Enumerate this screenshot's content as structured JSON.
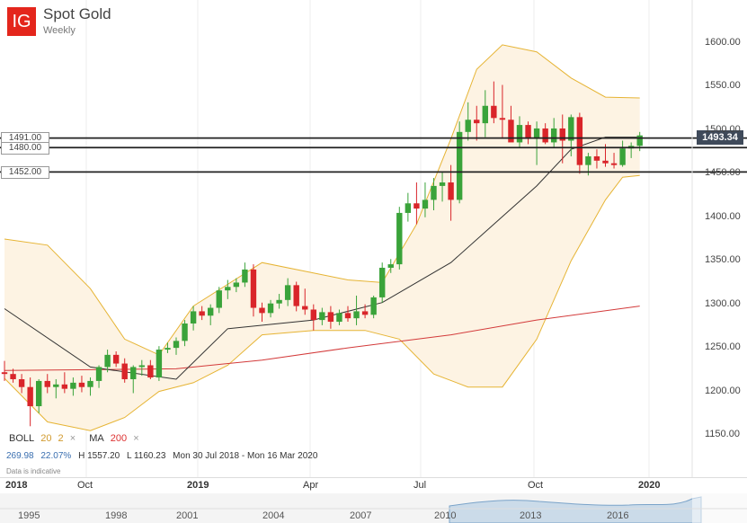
{
  "header": {
    "logo": "IG",
    "title": "Spot Gold",
    "subtitle": "Weekly"
  },
  "price_badge": "1493.34",
  "hline_labels": [
    "1491.00",
    "1480.00",
    "1452.00"
  ],
  "indicators": {
    "boll": {
      "name": "BOLL",
      "period": "20",
      "dev": "2",
      "remove": "×"
    },
    "ma": {
      "name": "MA",
      "period": "200",
      "remove": "×"
    }
  },
  "stats": {
    "change": "269.98",
    "change_pct": "22.07%",
    "high": "H 1557.20",
    "low": "L 1160.23",
    "range": "Mon 30 Jul 2018 - Mon 16 Mar 2020"
  },
  "note": "Data is indicative",
  "x_labels": [
    {
      "text": "2018",
      "major": true
    },
    {
      "text": "Oct",
      "major": false
    },
    {
      "text": "2019",
      "major": true
    },
    {
      "text": "Apr",
      "major": false
    },
    {
      "text": "Jul",
      "major": false
    },
    {
      "text": "Oct",
      "major": false
    },
    {
      "text": "2020",
      "major": true
    }
  ],
  "navigator_labels": [
    "1995",
    "1998",
    "2001",
    "2004",
    "2007",
    "2010",
    "2013",
    "2016"
  ],
  "colors": {
    "up": "#3aa33a",
    "down": "#d9252a",
    "boll_band": "#e6b434",
    "boll_fill": "#fdf3e3",
    "ma20": "#333333",
    "ma200": "#d33a3a",
    "logo": "#e4261c"
  },
  "chart_data": {
    "type": "candlestick",
    "title": "Spot Gold",
    "subtitle": "Weekly",
    "ylim": [
      1140,
      1610
    ],
    "y_ticks": [
      1150,
      1200,
      1250,
      1300,
      1350,
      1400,
      1450,
      1500,
      1550,
      1600
    ],
    "horizontal_lines": [
      1491,
      1480,
      1452
    ],
    "last_price": 1493.34,
    "candles": [
      [
        1222,
        1235,
        1212,
        1220
      ],
      [
        1220,
        1226,
        1210,
        1214
      ],
      [
        1214,
        1220,
        1198,
        1205
      ],
      [
        1205,
        1216,
        1160,
        1183
      ],
      [
        1183,
        1214,
        1175,
        1212
      ],
      [
        1212,
        1220,
        1198,
        1205
      ],
      [
        1205,
        1214,
        1192,
        1208
      ],
      [
        1208,
        1222,
        1198,
        1203
      ],
      [
        1203,
        1216,
        1195,
        1210
      ],
      [
        1210,
        1218,
        1199,
        1205
      ],
      [
        1205,
        1216,
        1195,
        1212
      ],
      [
        1212,
        1230,
        1204,
        1228
      ],
      [
        1228,
        1248,
        1222,
        1242
      ],
      [
        1242,
        1246,
        1228,
        1232
      ],
      [
        1232,
        1238,
        1210,
        1214
      ],
      [
        1214,
        1230,
        1198,
        1228
      ],
      [
        1228,
        1236,
        1218,
        1230
      ],
      [
        1230,
        1236,
        1214,
        1216
      ],
      [
        1216,
        1252,
        1212,
        1248
      ],
      [
        1248,
        1256,
        1244,
        1250
      ],
      [
        1250,
        1262,
        1242,
        1258
      ],
      [
        1258,
        1282,
        1252,
        1278
      ],
      [
        1278,
        1298,
        1270,
        1292
      ],
      [
        1292,
        1298,
        1282,
        1287
      ],
      [
        1287,
        1300,
        1276,
        1296
      ],
      [
        1296,
        1320,
        1290,
        1316
      ],
      [
        1316,
        1328,
        1306,
        1320
      ],
      [
        1320,
        1330,
        1314,
        1325
      ],
      [
        1325,
        1348,
        1320,
        1340
      ],
      [
        1340,
        1346,
        1286,
        1296
      ],
      [
        1296,
        1302,
        1280,
        1290
      ],
      [
        1290,
        1305,
        1285,
        1301
      ],
      [
        1301,
        1312,
        1295,
        1305
      ],
      [
        1305,
        1330,
        1298,
        1322
      ],
      [
        1322,
        1326,
        1292,
        1298
      ],
      [
        1298,
        1318,
        1288,
        1294
      ],
      [
        1294,
        1300,
        1270,
        1282
      ],
      [
        1282,
        1296,
        1276,
        1291
      ],
      [
        1291,
        1298,
        1272,
        1280
      ],
      [
        1280,
        1294,
        1276,
        1290
      ],
      [
        1290,
        1298,
        1280,
        1284
      ],
      [
        1284,
        1310,
        1276,
        1292
      ],
      [
        1292,
        1300,
        1284,
        1288
      ],
      [
        1288,
        1310,
        1284,
        1308
      ],
      [
        1308,
        1348,
        1302,
        1342
      ],
      [
        1342,
        1352,
        1336,
        1346
      ],
      [
        1346,
        1412,
        1340,
        1405
      ],
      [
        1405,
        1428,
        1395,
        1416
      ],
      [
        1416,
        1440,
        1392,
        1410
      ],
      [
        1410,
        1440,
        1400,
        1420
      ],
      [
        1420,
        1445,
        1408,
        1436
      ],
      [
        1436,
        1452,
        1418,
        1440
      ],
      [
        1440,
        1460,
        1396,
        1420
      ],
      [
        1420,
        1510,
        1416,
        1498
      ],
      [
        1498,
        1532,
        1488,
        1512
      ],
      [
        1512,
        1528,
        1488,
        1508
      ],
      [
        1508,
        1546,
        1492,
        1528
      ],
      [
        1528,
        1556,
        1508,
        1514
      ],
      [
        1514,
        1552,
        1490,
        1512
      ],
      [
        1512,
        1528,
        1488,
        1486
      ],
      [
        1486,
        1516,
        1480,
        1506
      ],
      [
        1506,
        1510,
        1484,
        1490
      ],
      [
        1490,
        1510,
        1460,
        1502
      ],
      [
        1502,
        1508,
        1484,
        1486
      ],
      [
        1486,
        1514,
        1480,
        1502
      ],
      [
        1502,
        1518,
        1462,
        1488
      ],
      [
        1488,
        1518,
        1470,
        1515
      ],
      [
        1515,
        1520,
        1450,
        1460
      ],
      [
        1460,
        1474,
        1448,
        1470
      ],
      [
        1470,
        1478,
        1456,
        1465
      ],
      [
        1465,
        1484,
        1458,
        1462
      ],
      [
        1462,
        1474,
        1456,
        1460
      ],
      [
        1460,
        1488,
        1458,
        1479
      ],
      [
        1479,
        1486,
        1468,
        1482
      ],
      [
        1482,
        1498,
        1476,
        1494
      ]
    ],
    "ma20": [
      [
        0,
        1295
      ],
      [
        10,
        1228
      ],
      [
        20,
        1214
      ],
      [
        26,
        1272
      ],
      [
        36,
        1282
      ],
      [
        44,
        1302
      ],
      [
        52,
        1348
      ],
      [
        62,
        1436
      ],
      [
        66,
        1478
      ],
      [
        70,
        1492
      ],
      [
        74,
        1492
      ]
    ],
    "ma200": [
      [
        0,
        1224
      ],
      [
        20,
        1226
      ],
      [
        30,
        1236
      ],
      [
        40,
        1250
      ],
      [
        52,
        1265
      ],
      [
        62,
        1282
      ],
      [
        74,
        1298
      ]
    ],
    "boll_upper": [
      [
        0,
        1375
      ],
      [
        5,
        1368
      ],
      [
        10,
        1318
      ],
      [
        14,
        1260
      ],
      [
        18,
        1242
      ],
      [
        22,
        1298
      ],
      [
        30,
        1348
      ],
      [
        40,
        1328
      ],
      [
        44,
        1325
      ],
      [
        48,
        1392
      ],
      [
        52,
        1490
      ],
      [
        55,
        1570
      ],
      [
        58,
        1598
      ],
      [
        62,
        1590
      ],
      [
        66,
        1560
      ],
      [
        70,
        1538
      ],
      [
        74,
        1537
      ]
    ],
    "boll_lower": [
      [
        0,
        1215
      ],
      [
        5,
        1165
      ],
      [
        10,
        1155
      ],
      [
        14,
        1170
      ],
      [
        18,
        1200
      ],
      [
        22,
        1210
      ],
      [
        26,
        1230
      ],
      [
        30,
        1265
      ],
      [
        36,
        1270
      ],
      [
        42,
        1270
      ],
      [
        46,
        1260
      ],
      [
        50,
        1220
      ],
      [
        54,
        1205
      ],
      [
        58,
        1205
      ],
      [
        62,
        1260
      ],
      [
        66,
        1350
      ],
      [
        70,
        1420
      ],
      [
        72,
        1446
      ],
      [
        74,
        1448
      ]
    ]
  }
}
